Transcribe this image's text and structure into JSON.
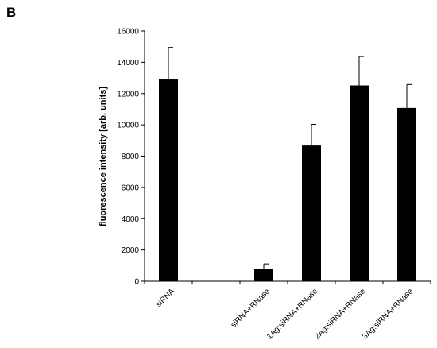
{
  "panel_label": "B",
  "chart_data": {
    "type": "bar",
    "categories": [
      "siRNA",
      "",
      "siRNA+RNase",
      "1Ag:siRNA+RNase",
      "2Ag:siRNA+RNase",
      "3Ag:siRNA+RNase"
    ],
    "values": [
      12900,
      null,
      780,
      8680,
      12520,
      11080
    ],
    "errors": [
      2050,
      null,
      330,
      1350,
      1850,
      1500
    ],
    "ylabel": "fluorescence intensity [arb. units]",
    "xlabel": "",
    "ylim": [
      0,
      16000
    ],
    "yticks": [
      0,
      2000,
      4000,
      6000,
      8000,
      10000,
      12000,
      14000,
      16000
    ],
    "grid": false,
    "bar_color": "#000000"
  }
}
